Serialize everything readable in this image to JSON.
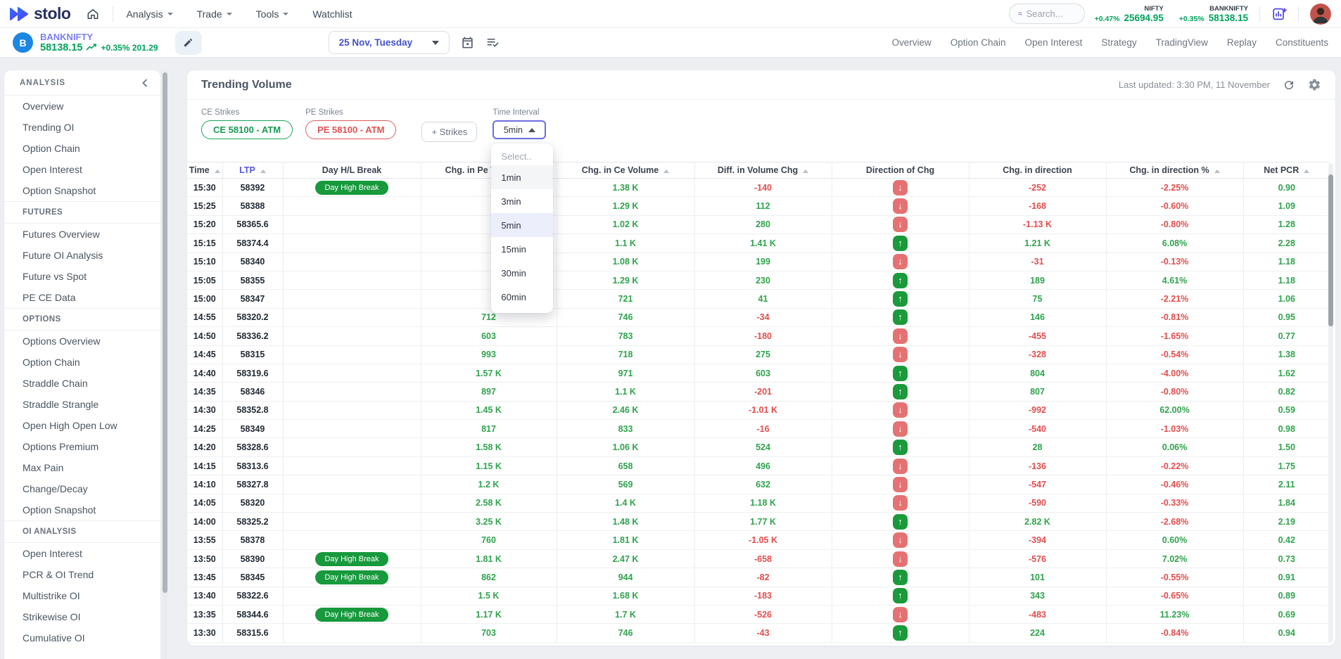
{
  "navbar": {
    "brand": "stolo",
    "menu": [
      {
        "label": "Analysis",
        "caret": true
      },
      {
        "label": "Trade",
        "caret": true
      },
      {
        "label": "Tools",
        "caret": true
      },
      {
        "label": "Watchlist",
        "caret": false
      }
    ],
    "search_placeholder": "Search...",
    "tickers": [
      {
        "name": "NIFTY",
        "change": "+0.47%",
        "price": "25694.95"
      },
      {
        "name": "BANKNIFTY",
        "change": "+0.35%",
        "price": "58138.15"
      }
    ]
  },
  "instrument": {
    "avatar_letter": "B",
    "symbol": "BANKNIFTY",
    "price": "58138.15",
    "change": "+0.35% 201.29",
    "date": "25 Nov, Tuesday",
    "links": [
      "Overview",
      "Option Chain",
      "Open Interest",
      "Strategy",
      "TradingView",
      "Replay",
      "Constituents"
    ]
  },
  "sidebar": {
    "title": "ANALYSIS",
    "sections": [
      {
        "heading": "",
        "items": [
          "Overview",
          "Trending OI",
          "Option Chain",
          "Open Interest",
          "Option Snapshot"
        ]
      },
      {
        "heading": "FUTURES",
        "items": [
          "Futures Overview",
          "Future OI Analysis",
          "Future vs Spot",
          "PE CE Data"
        ]
      },
      {
        "heading": "OPTIONS",
        "items": [
          "Options Overview",
          "Option Chain",
          "Straddle Chain",
          "Straddle Strangle",
          "Open High Open Low",
          "Options Premium",
          "Max Pain",
          "Change/Decay",
          "Option Snapshot"
        ]
      },
      {
        "heading": "OI ANALYSIS",
        "items": [
          "Open Interest",
          "PCR & OI Trend",
          "Multistrike OI",
          "Strikewise OI",
          "Cumulative OI"
        ]
      }
    ]
  },
  "panel": {
    "title": "Trending Volume",
    "last_updated": "Last updated: 3:30 PM, 11 November",
    "filters": {
      "ce_label": "CE Strikes",
      "ce_value": "CE 58100 - ATM",
      "pe_label": "PE Strikes",
      "pe_value": "PE 58100 - ATM",
      "add_strikes": "+ Strikes",
      "interval_label": "Time Interval",
      "interval_value": "5min"
    },
    "dropdown": {
      "placeholder": "Select..",
      "options": [
        "1min",
        "3min",
        "5min",
        "15min",
        "30min",
        "60min"
      ],
      "selected": "5min",
      "hovered": "1min"
    }
  },
  "table": {
    "columns": [
      {
        "label": "Time",
        "sort": true
      },
      {
        "label": "LTP",
        "sort": true,
        "accent": true
      },
      {
        "label": "Day H/L Break",
        "sort": false
      },
      {
        "label": "Chg. in Pe Volume",
        "sort": true
      },
      {
        "label": "Chg. in Ce Volume",
        "sort": true
      },
      {
        "label": "Diff. in Volume Chg",
        "sort": true
      },
      {
        "label": "Direction of Chg",
        "sort": false
      },
      {
        "label": "Chg. in direction",
        "sort": false
      },
      {
        "label": "Chg. in direction %",
        "sort": true
      },
      {
        "label": "Net PCR",
        "sort": true
      }
    ],
    "rows": [
      {
        "time": "15:30",
        "ltp": "58392",
        "badge": "Day High Break",
        "pe_vol": "",
        "ce_vol": "1.38 K",
        "diff": "-140",
        "dir": "down",
        "chg_dir": "-252",
        "chg_dir_pct": "-2.25%",
        "net_pcr": "0.90"
      },
      {
        "time": "15:25",
        "ltp": "58388",
        "badge": "",
        "pe_vol": "",
        "ce_vol": "1.29 K",
        "diff": "112",
        "dir": "down",
        "chg_dir": "-168",
        "chg_dir_pct": "-0.60%",
        "net_pcr": "1.09"
      },
      {
        "time": "15:20",
        "ltp": "58365.6",
        "badge": "",
        "pe_vol": "",
        "ce_vol": "1.02 K",
        "diff": "280",
        "dir": "down",
        "chg_dir": "-1.13 K",
        "chg_dir_pct": "-0.80%",
        "net_pcr": "1.28"
      },
      {
        "time": "15:15",
        "ltp": "58374.4",
        "badge": "",
        "pe_vol": "",
        "ce_vol": "1.1 K",
        "diff": "1.41 K",
        "dir": "up",
        "chg_dir": "1.21 K",
        "chg_dir_pct": "6.08%",
        "net_pcr": "2.28"
      },
      {
        "time": "15:10",
        "ltp": "58340",
        "badge": "",
        "pe_vol": "",
        "ce_vol": "1.08 K",
        "diff": "199",
        "dir": "down",
        "chg_dir": "-31",
        "chg_dir_pct": "-0.13%",
        "net_pcr": "1.18"
      },
      {
        "time": "15:05",
        "ltp": "58355",
        "badge": "",
        "pe_vol": "",
        "ce_vol": "1.29 K",
        "diff": "230",
        "dir": "up",
        "chg_dir": "189",
        "chg_dir_pct": "4.61%",
        "net_pcr": "1.18"
      },
      {
        "time": "15:00",
        "ltp": "58347",
        "badge": "",
        "pe_vol": "",
        "ce_vol": "721",
        "diff": "41",
        "dir": "up",
        "chg_dir": "75",
        "chg_dir_pct": "-2.21%",
        "net_pcr": "1.06"
      },
      {
        "time": "14:55",
        "ltp": "58320.2",
        "badge": "",
        "pe_vol": "712",
        "ce_vol": "746",
        "diff": "-34",
        "dir": "up",
        "chg_dir": "146",
        "chg_dir_pct": "-0.81%",
        "net_pcr": "0.95"
      },
      {
        "time": "14:50",
        "ltp": "58336.2",
        "badge": "",
        "pe_vol": "603",
        "ce_vol": "783",
        "diff": "-180",
        "dir": "down",
        "chg_dir": "-455",
        "chg_dir_pct": "-1.65%",
        "net_pcr": "0.77"
      },
      {
        "time": "14:45",
        "ltp": "58315",
        "badge": "",
        "pe_vol": "993",
        "ce_vol": "718",
        "diff": "275",
        "dir": "down",
        "chg_dir": "-328",
        "chg_dir_pct": "-0.54%",
        "net_pcr": "1.38"
      },
      {
        "time": "14:40",
        "ltp": "58319.6",
        "badge": "",
        "pe_vol": "1.57 K",
        "ce_vol": "971",
        "diff": "603",
        "dir": "up",
        "chg_dir": "804",
        "chg_dir_pct": "-4.00%",
        "net_pcr": "1.62"
      },
      {
        "time": "14:35",
        "ltp": "58346",
        "badge": "",
        "pe_vol": "897",
        "ce_vol": "1.1 K",
        "diff": "-201",
        "dir": "up",
        "chg_dir": "807",
        "chg_dir_pct": "-0.80%",
        "net_pcr": "0.82"
      },
      {
        "time": "14:30",
        "ltp": "58352.8",
        "badge": "",
        "pe_vol": "1.45 K",
        "ce_vol": "2.46 K",
        "diff": "-1.01 K",
        "dir": "down",
        "chg_dir": "-992",
        "chg_dir_pct": "62.00%",
        "net_pcr": "0.59"
      },
      {
        "time": "14:25",
        "ltp": "58349",
        "badge": "",
        "pe_vol": "817",
        "ce_vol": "833",
        "diff": "-16",
        "dir": "down",
        "chg_dir": "-540",
        "chg_dir_pct": "-1.03%",
        "net_pcr": "0.98"
      },
      {
        "time": "14:20",
        "ltp": "58328.6",
        "badge": "",
        "pe_vol": "1.58 K",
        "ce_vol": "1.06 K",
        "diff": "524",
        "dir": "up",
        "chg_dir": "28",
        "chg_dir_pct": "0.06%",
        "net_pcr": "1.50"
      },
      {
        "time": "14:15",
        "ltp": "58313.6",
        "badge": "",
        "pe_vol": "1.15 K",
        "ce_vol": "658",
        "diff": "496",
        "dir": "down",
        "chg_dir": "-136",
        "chg_dir_pct": "-0.22%",
        "net_pcr": "1.75"
      },
      {
        "time": "14:10",
        "ltp": "58327.8",
        "badge": "",
        "pe_vol": "1.2 K",
        "ce_vol": "569",
        "diff": "632",
        "dir": "down",
        "chg_dir": "-547",
        "chg_dir_pct": "-0.46%",
        "net_pcr": "2.11"
      },
      {
        "time": "14:05",
        "ltp": "58320",
        "badge": "",
        "pe_vol": "2.58 K",
        "ce_vol": "1.4 K",
        "diff": "1.18 K",
        "dir": "down",
        "chg_dir": "-590",
        "chg_dir_pct": "-0.33%",
        "net_pcr": "1.84"
      },
      {
        "time": "14:00",
        "ltp": "58325.2",
        "badge": "",
        "pe_vol": "3.25 K",
        "ce_vol": "1.48 K",
        "diff": "1.77 K",
        "dir": "up",
        "chg_dir": "2.82 K",
        "chg_dir_pct": "-2.68%",
        "net_pcr": "2.19"
      },
      {
        "time": "13:55",
        "ltp": "58378",
        "badge": "",
        "pe_vol": "760",
        "ce_vol": "1.81 K",
        "diff": "-1.05 K",
        "dir": "down",
        "chg_dir": "-394",
        "chg_dir_pct": "0.60%",
        "net_pcr": "0.42"
      },
      {
        "time": "13:50",
        "ltp": "58390",
        "badge": "Day High Break",
        "pe_vol": "1.81 K",
        "ce_vol": "2.47 K",
        "diff": "-658",
        "dir": "down",
        "chg_dir": "-576",
        "chg_dir_pct": "7.02%",
        "net_pcr": "0.73"
      },
      {
        "time": "13:45",
        "ltp": "58345",
        "badge": "Day High Break",
        "pe_vol": "862",
        "ce_vol": "944",
        "diff": "-82",
        "dir": "up",
        "chg_dir": "101",
        "chg_dir_pct": "-0.55%",
        "net_pcr": "0.91"
      },
      {
        "time": "13:40",
        "ltp": "58322.6",
        "badge": "",
        "pe_vol": "1.5 K",
        "ce_vol": "1.68 K",
        "diff": "-183",
        "dir": "up",
        "chg_dir": "343",
        "chg_dir_pct": "-0.65%",
        "net_pcr": "0.89"
      },
      {
        "time": "13:35",
        "ltp": "58344.6",
        "badge": "Day High Break",
        "pe_vol": "1.17 K",
        "ce_vol": "1.7 K",
        "diff": "-526",
        "dir": "down",
        "chg_dir": "-483",
        "chg_dir_pct": "11.23%",
        "net_pcr": "0.69"
      },
      {
        "time": "13:30",
        "ltp": "58315.6",
        "badge": "",
        "pe_vol": "703",
        "ce_vol": "746",
        "diff": "-43",
        "dir": "up",
        "chg_dir": "224",
        "chg_dir_pct": "-0.84%",
        "net_pcr": "0.94"
      }
    ]
  },
  "colors": {
    "brand_navy": "#273060",
    "accent_indigo": "#5558d9",
    "ticker_green": "#00a25b",
    "table_green": "#2fa34d",
    "table_red": "#e14e4e",
    "badge_green": "#17993c",
    "pill_up_green": "#1b9a3b",
    "pill_down_red": "#e57272",
    "ce_chip_green": "#19a45b",
    "pe_chip_red": "#e05b5b"
  }
}
